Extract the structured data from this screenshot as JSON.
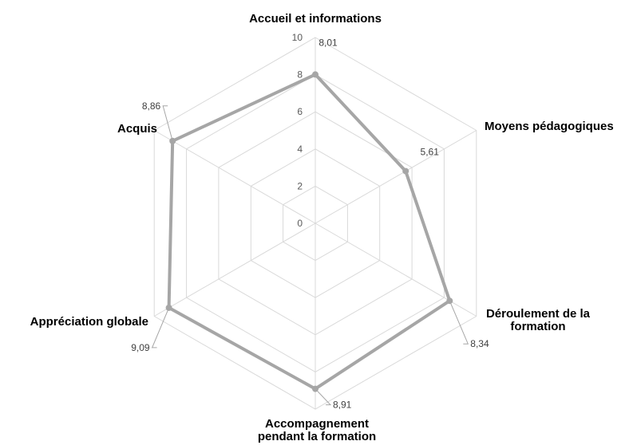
{
  "chart_data": {
    "type": "radar",
    "categories": [
      [
        "Accueil et informations"
      ],
      [
        "Moyens pédagogiques"
      ],
      [
        "Déroulement de la",
        "formation"
      ],
      [
        "Accompagnement",
        "pendant la formation"
      ],
      [
        "Appréciation globale"
      ],
      [
        "Acquis"
      ]
    ],
    "values": [
      8.01,
      5.61,
      8.34,
      8.91,
      9.09,
      8.86
    ],
    "value_labels": [
      "8,01",
      "5,61",
      "8,34",
      "8,91",
      "9,09",
      "8,86"
    ],
    "rlim": [
      0,
      10
    ],
    "ticks": [
      0,
      2,
      4,
      6,
      8,
      10
    ],
    "tick_labels": [
      "0",
      "2",
      "4",
      "6",
      "8",
      "10"
    ],
    "grid": true,
    "legend": "none",
    "colors": {
      "series": "#a6a6a6",
      "grid": "#d9d9d9"
    }
  }
}
